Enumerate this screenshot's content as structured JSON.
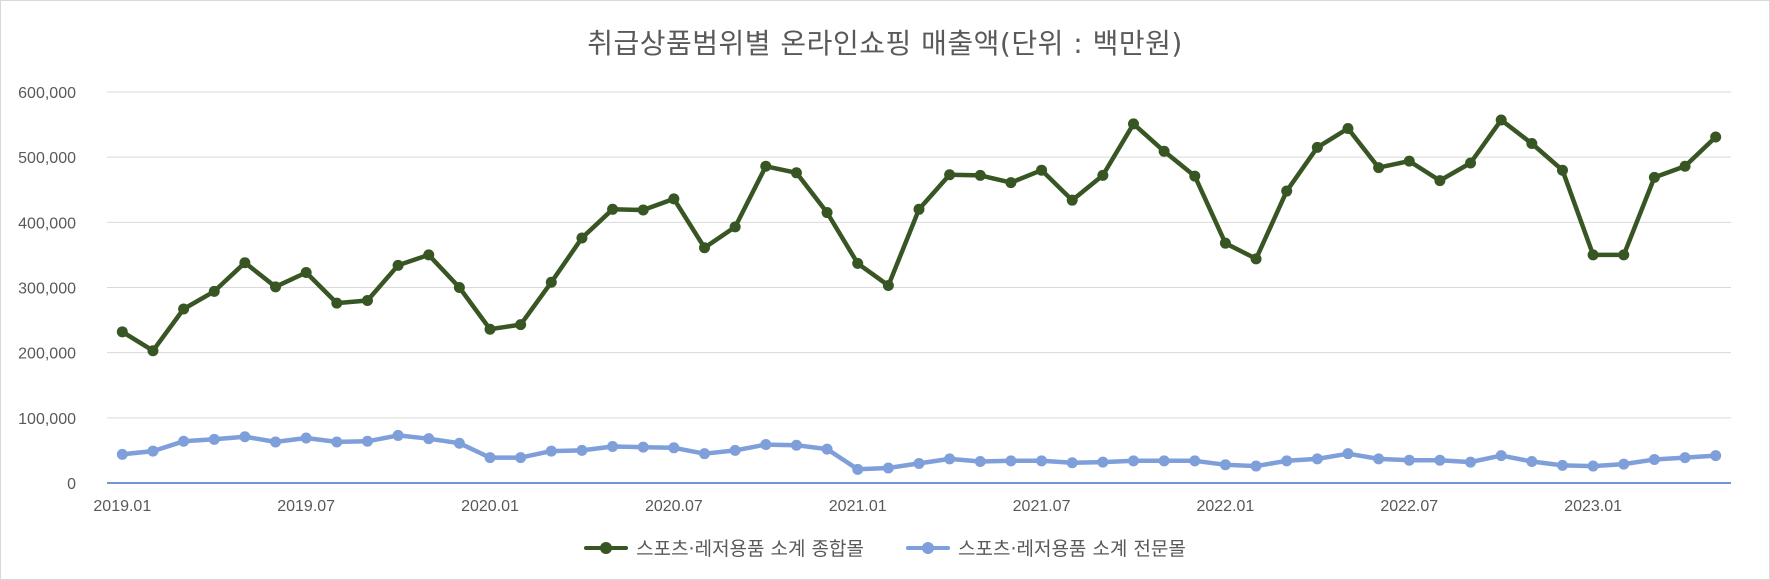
{
  "chart_data": {
    "type": "line",
    "title": "취급상품범위별 온라인쇼핑 매출액(단위 : 백만원)",
    "xlabel": "",
    "ylabel": "",
    "ylim": [
      0,
      600000
    ],
    "yticks": [
      0,
      100000,
      200000,
      300000,
      400000,
      500000,
      600000
    ],
    "ytick_labels": [
      "0",
      "100,000",
      "200,000",
      "300,000",
      "400,000",
      "500,000",
      "600,000"
    ],
    "x": [
      "2019.01",
      "2019.02",
      "2019.03",
      "2019.04",
      "2019.05",
      "2019.06",
      "2019.07",
      "2019.08",
      "2019.09",
      "2019.10",
      "2019.11",
      "2019.12",
      "2020.01",
      "2020.02",
      "2020.03",
      "2020.04",
      "2020.05",
      "2020.06",
      "2020.07",
      "2020.08",
      "2020.09",
      "2020.10",
      "2020.11",
      "2020.12",
      "2021.01",
      "2021.02",
      "2021.03",
      "2021.04",
      "2021.05",
      "2021.06",
      "2021.07",
      "2021.08",
      "2021.09",
      "2021.10",
      "2021.11",
      "2021.12",
      "2022.01",
      "2022.02",
      "2022.03",
      "2022.04",
      "2022.05",
      "2022.06",
      "2022.07",
      "2022.08",
      "2022.09",
      "2022.10",
      "2022.11",
      "2022.12",
      "2023.01",
      "2023.02",
      "2023.03",
      "2023.04",
      "2023.05"
    ],
    "xtick_labels": [
      "2019.01",
      "2019.07",
      "2020.01",
      "2020.07",
      "2021.01",
      "2021.07",
      "2022.01",
      "2022.07",
      "2023.01"
    ],
    "grid": true,
    "legend_position": "bottom",
    "series": [
      {
        "name": "스포츠·레저용품 소계 종합몰",
        "color": "#375623",
        "values": [
          232000,
          203000,
          267000,
          294000,
          338000,
          301000,
          323000,
          276000,
          280000,
          334000,
          350000,
          300000,
          236000,
          243000,
          308000,
          376000,
          420000,
          419000,
          436000,
          361000,
          393000,
          486000,
          476000,
          415000,
          337000,
          303000,
          420000,
          473000,
          472000,
          461000,
          480000,
          434000,
          472000,
          551000,
          509000,
          471000,
          368000,
          344000,
          448000,
          515000,
          544000,
          484000,
          494000,
          464000,
          491000,
          557000,
          521000,
          480000,
          350000,
          350000,
          469000,
          486000,
          531000
        ]
      },
      {
        "name": "스포츠·레저용품 소계 전문몰",
        "color": "#7f9fdb",
        "values": [
          44000,
          49000,
          64000,
          67000,
          71000,
          63000,
          69000,
          63000,
          64000,
          73000,
          68000,
          61000,
          39000,
          39000,
          49000,
          50000,
          56000,
          55000,
          54000,
          45000,
          50000,
          59000,
          58000,
          52000,
          21000,
          23000,
          30000,
          37000,
          33000,
          34000,
          34000,
          31000,
          32000,
          34000,
          34000,
          34000,
          28000,
          26000,
          34000,
          37000,
          45000,
          37000,
          35000,
          35000,
          32000,
          42000,
          33000,
          27000,
          26000,
          29000,
          36000,
          39000,
          42000
        ]
      }
    ]
  }
}
